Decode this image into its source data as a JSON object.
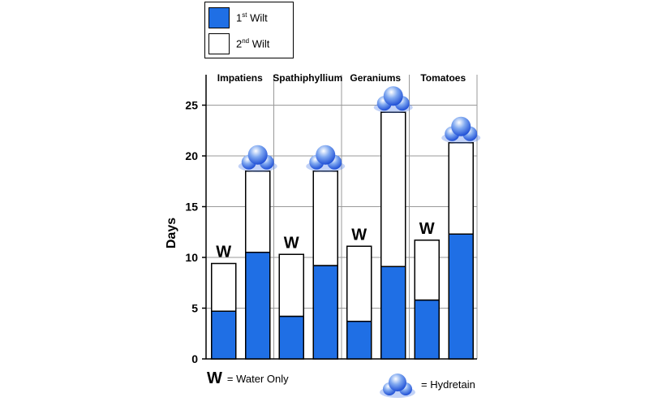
{
  "legend": {
    "first": {
      "ord_num": "1",
      "ord_suffix": "st",
      "word": "Wilt",
      "color": "#1f6fe5"
    },
    "second": {
      "ord_num": "2",
      "ord_suffix": "nd",
      "word": "Wilt",
      "color": "#ffffff"
    }
  },
  "notes": {
    "water_symbol": "W",
    "water_label": "= Water Only",
    "hydretain_label": "= Hydretain"
  },
  "chart_data": {
    "type": "bar",
    "stacked": true,
    "ylabel": "Days",
    "ylim": [
      0,
      28
    ],
    "yticks": [
      0,
      5,
      10,
      15,
      20,
      25
    ],
    "grid": true,
    "categories": [
      "Impatiens",
      "Spathiphyllium",
      "Geraniums",
      "Tomatoes"
    ],
    "treatments": [
      "Water Only",
      "Hydretain"
    ],
    "treatment_markers": [
      "W",
      "hydretain-cloud-icon"
    ],
    "series": [
      {
        "name": "1st Wilt",
        "color": "#1f6fe5",
        "values": [
          [
            4.7,
            10.5
          ],
          [
            4.2,
            9.2
          ],
          [
            3.7,
            9.1
          ],
          [
            5.8,
            12.3
          ]
        ]
      },
      {
        "name": "2nd Wilt",
        "color": "#ffffff",
        "values": [
          [
            4.7,
            8.0
          ],
          [
            6.1,
            9.3
          ],
          [
            7.4,
            15.2
          ],
          [
            5.9,
            9.0
          ]
        ]
      }
    ]
  }
}
